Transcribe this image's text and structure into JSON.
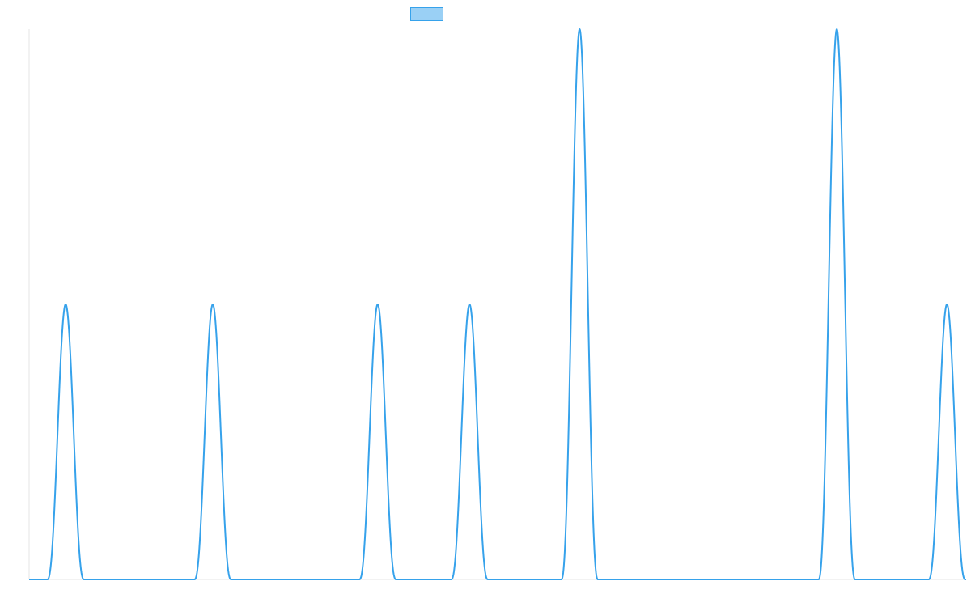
{
  "chart_data": {
    "type": "line",
    "title": "",
    "xlabel": "",
    "ylabel": "",
    "x_range": [
      0,
      1
    ],
    "y_range": [
      0,
      2
    ],
    "grid": false,
    "legend": {
      "position": "top",
      "label": ""
    },
    "colors": {
      "line": "#36a2eb",
      "legend_fill": "#9ad0f5",
      "axis": "#e6e6e6"
    },
    "series": [
      {
        "peaks": [
          {
            "x": 0.039,
            "height": 1
          },
          {
            "x": 0.196,
            "height": 1
          },
          {
            "x": 0.372,
            "height": 1
          },
          {
            "x": 0.47,
            "height": 1
          },
          {
            "x": 0.5875,
            "height": 2
          },
          {
            "x": 0.862,
            "height": 2
          },
          {
            "x": 0.9795,
            "height": 1
          }
        ],
        "peak_half_width": 0.0195
      }
    ]
  }
}
